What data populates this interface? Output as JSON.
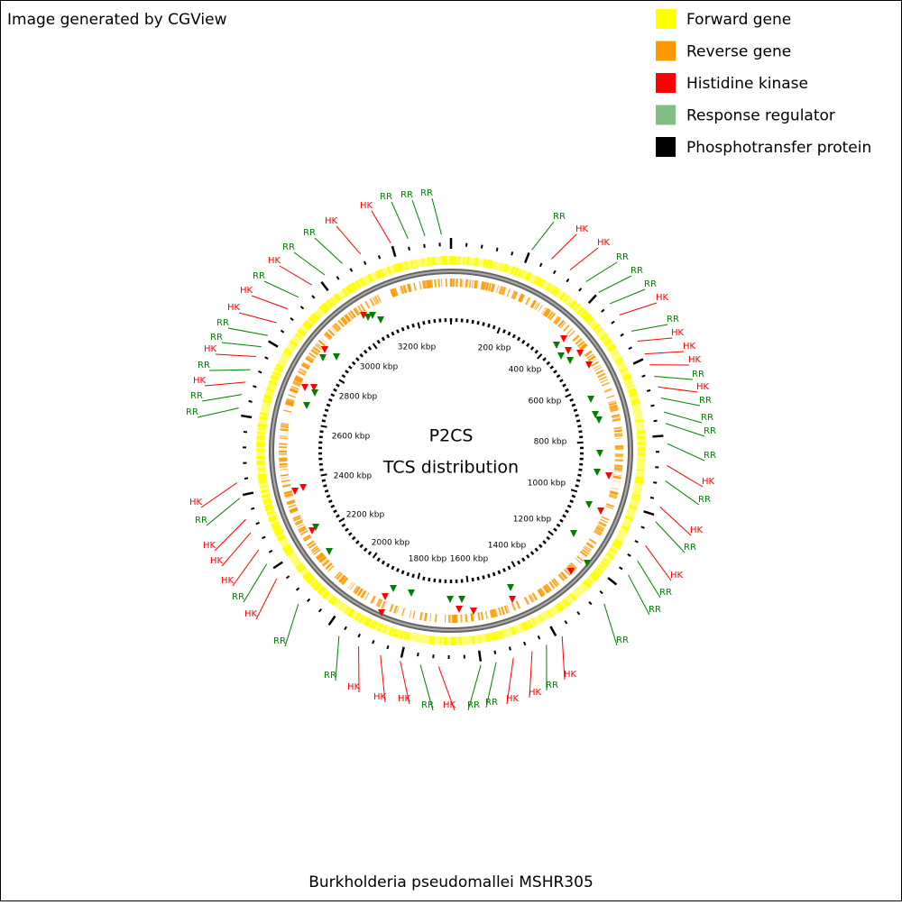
{
  "header": {
    "title": "Image generated by CGView"
  },
  "legend": {
    "items": [
      {
        "label": "Forward gene",
        "color": "#ffff00"
      },
      {
        "label": "Reverse gene",
        "color": "#ff9900"
      },
      {
        "label": "Histidine kinase",
        "color": "#ff0000"
      },
      {
        "label": "Response regulator",
        "color": "#80c080"
      },
      {
        "label": "Phosphotransfer protein",
        "color": "#000000"
      }
    ]
  },
  "center": {
    "title": "P2CS",
    "subtitle": "TCS distribution"
  },
  "footer": {
    "caption": "Burkholderia pseudomallei MSHR305"
  },
  "ring": {
    "tick_labels": [
      "200 kbp",
      "400 kbp",
      "600 kbp",
      "800 kbp",
      "1000 kbp",
      "1200 kbp",
      "1400 kbp",
      "1600 kbp",
      "1800 kbp",
      "2000 kbp",
      "2200 kbp",
      "2400 kbp",
      "2600 kbp",
      "2800 kbp",
      "3000 kbp",
      "3200 kbp"
    ]
  },
  "callouts": [
    {
      "text": "RR",
      "color": "green"
    },
    {
      "text": "HK",
      "color": "red"
    },
    {
      "text": "HK",
      "color": "red"
    },
    {
      "text": "RR",
      "color": "green"
    },
    {
      "text": "RR",
      "color": "green"
    },
    {
      "text": "RR",
      "color": "green"
    },
    {
      "text": "HK",
      "color": "red"
    },
    {
      "text": "RR",
      "color": "green"
    },
    {
      "text": "HK",
      "color": "red"
    },
    {
      "text": "HK",
      "color": "red"
    },
    {
      "text": "HK",
      "color": "red"
    },
    {
      "text": "RR",
      "color": "green"
    },
    {
      "text": "HK",
      "color": "red"
    },
    {
      "text": "RR",
      "color": "green"
    },
    {
      "text": "RR",
      "color": "green"
    },
    {
      "text": "RR",
      "color": "green"
    },
    {
      "text": "RR",
      "color": "green"
    },
    {
      "text": "HK",
      "color": "red"
    },
    {
      "text": "RR",
      "color": "green"
    },
    {
      "text": "HK",
      "color": "red"
    },
    {
      "text": "RR",
      "color": "green"
    },
    {
      "text": "HK",
      "color": "red"
    },
    {
      "text": "RR",
      "color": "green"
    },
    {
      "text": "RR",
      "color": "green"
    },
    {
      "text": "RR",
      "color": "green"
    },
    {
      "text": "HK",
      "color": "red"
    },
    {
      "text": "RR",
      "color": "green"
    },
    {
      "text": "HK",
      "color": "red"
    },
    {
      "text": "HK",
      "color": "red"
    },
    {
      "text": "RR",
      "color": "green"
    },
    {
      "text": "RR",
      "color": "green"
    },
    {
      "text": "HK",
      "color": "red"
    },
    {
      "text": "RR",
      "color": "green"
    },
    {
      "text": "HK",
      "color": "red"
    },
    {
      "text": "HK",
      "color": "red"
    },
    {
      "text": "HK",
      "color": "red"
    },
    {
      "text": "RR",
      "color": "green"
    },
    {
      "text": "RR",
      "color": "green"
    },
    {
      "text": "HK",
      "color": "red"
    },
    {
      "text": "RR",
      "color": "green"
    },
    {
      "text": "HK",
      "color": "red"
    },
    {
      "text": "HK",
      "color": "red"
    },
    {
      "text": "HK",
      "color": "red"
    },
    {
      "text": "RR",
      "color": "green"
    },
    {
      "text": "HK",
      "color": "red"
    },
    {
      "text": "RR",
      "color": "green"
    },
    {
      "text": "RR",
      "color": "green"
    },
    {
      "text": "HK",
      "color": "red"
    },
    {
      "text": "RR",
      "color": "green"
    },
    {
      "text": "HK",
      "color": "red"
    },
    {
      "text": "RR",
      "color": "green"
    },
    {
      "text": "RR",
      "color": "green"
    },
    {
      "text": "HK",
      "color": "red"
    },
    {
      "text": "HK",
      "color": "red"
    },
    {
      "text": "RR",
      "color": "green"
    },
    {
      "text": "HK",
      "color": "red"
    },
    {
      "text": "RR",
      "color": "green"
    },
    {
      "text": "RR",
      "color": "green"
    },
    {
      "text": "HK",
      "color": "red"
    },
    {
      "text": "HK",
      "color": "red"
    },
    {
      "text": "RR",
      "color": "green"
    },
    {
      "text": "RR",
      "color": "green"
    },
    {
      "text": "RR",
      "color": "green"
    }
  ]
}
